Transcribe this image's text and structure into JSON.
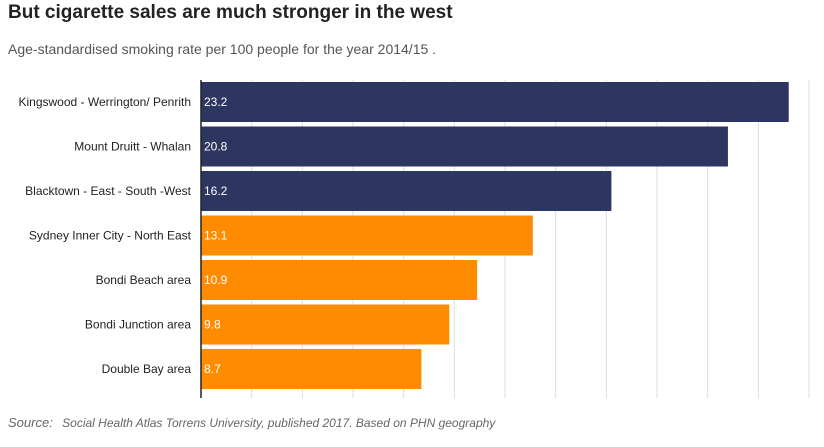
{
  "title": "But cigarette sales are much stronger in the west",
  "subtitle": "Age-standardised smoking rate per 100 people for the year 2014/15 .",
  "source": {
    "label": "Source:",
    "text": "Social Health Atlas Torrens University, published 2017.  Based on PHN geography"
  },
  "chart_data": {
    "type": "bar",
    "orientation": "horizontal",
    "categories": [
      "Kingswood - Werrington/ Penrith",
      "Mount Druitt - Whalan",
      "Blacktown - East - South -West",
      "Sydney Inner City - North East",
      "Bondi Beach area",
      "Bondi Junction area",
      "Double Bay area"
    ],
    "values": [
      23.2,
      20.8,
      16.2,
      13.1,
      10.9,
      9.8,
      8.7
    ],
    "colors": [
      "#2d3561",
      "#2d3561",
      "#2d3561",
      "#ff8c00",
      "#ff8c00",
      "#ff8c00",
      "#ff8c00"
    ],
    "xlim": [
      0,
      24
    ],
    "grid": true
  }
}
